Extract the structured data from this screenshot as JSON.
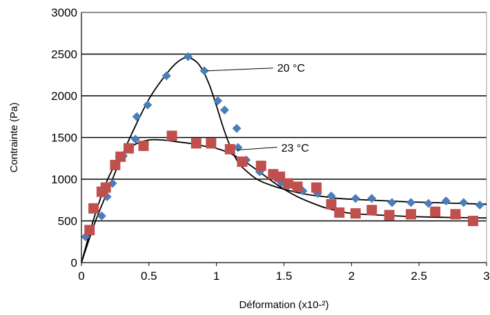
{
  "chart_data": {
    "type": "scatter",
    "xlabel": "Déformation (x10-²)",
    "ylabel": "Contrainte (Pa)",
    "xlim": [
      0,
      3
    ],
    "ylim": [
      0,
      3000
    ],
    "x_ticks": [
      "0",
      "0.5",
      "1",
      "1.5",
      "2",
      "2.5",
      "3"
    ],
    "y_ticks": [
      "0",
      "500",
      "1000",
      "1500",
      "2000",
      "2500",
      "3000"
    ],
    "grid": "horizontal",
    "annotations": [
      {
        "text": "20 °C",
        "x": 1.45,
        "y": 2340,
        "line_to": [
          0.93,
          2300
        ]
      },
      {
        "text": "23 °C",
        "x": 1.48,
        "y": 1380,
        "line_to": [
          1.15,
          1350
        ]
      }
    ],
    "series": [
      {
        "marker": "diamond",
        "color": "#4a7ebb",
        "x": [
          0.03,
          0.15,
          0.19,
          0.23,
          0.28,
          0.31,
          0.4,
          0.41,
          0.49,
          0.63,
          0.79,
          0.91,
          1.01,
          1.06,
          1.15,
          1.16,
          1.22,
          1.32,
          1.43,
          1.48,
          1.53,
          1.58,
          1.64,
          1.75,
          1.85,
          2.03,
          2.15,
          2.3,
          2.44,
          2.57,
          2.7,
          2.83,
          2.95
        ],
        "y": [
          310,
          560,
          790,
          950,
          1270,
          1280,
          1480,
          1750,
          1890,
          2240,
          2470,
          2300,
          1940,
          1830,
          1610,
          1380,
          1230,
          1090,
          1030,
          960,
          920,
          910,
          860,
          830,
          800,
          770,
          770,
          720,
          720,
          710,
          740,
          720,
          690
        ]
      },
      {
        "marker": "square",
        "color": "#c0504d",
        "x": [
          0.06,
          0.09,
          0.15,
          0.18,
          0.25,
          0.29,
          0.35,
          0.46,
          0.67,
          0.85,
          0.96,
          1.1,
          1.19,
          1.33,
          1.42,
          1.47,
          1.53,
          1.6,
          1.74,
          1.85,
          1.91,
          2.03,
          2.15,
          2.28,
          2.44,
          2.62,
          2.77,
          2.9
        ],
        "y": [
          390,
          650,
          850,
          900,
          1170,
          1270,
          1370,
          1400,
          1520,
          1430,
          1430,
          1360,
          1210,
          1160,
          1060,
          1030,
          950,
          910,
          900,
          700,
          600,
          590,
          630,
          570,
          580,
          610,
          580,
          500
        ]
      }
    ],
    "fit_curves": [
      {
        "color": "#000000",
        "x": [
          0.0,
          0.1,
          0.2,
          0.3,
          0.4,
          0.5,
          0.6,
          0.7,
          0.78,
          0.85,
          0.9,
          0.95,
          1.0,
          1.05,
          1.1,
          1.15,
          1.2,
          1.3,
          1.4,
          1.5,
          1.6,
          1.7,
          1.8,
          1.9,
          2.0,
          2.2,
          2.4,
          2.6,
          2.8,
          3.0
        ],
        "y": [
          0,
          480,
          880,
          1280,
          1640,
          1960,
          2200,
          2390,
          2460,
          2410,
          2300,
          2120,
          1880,
          1620,
          1400,
          1230,
          1130,
          1000,
          930,
          880,
          840,
          810,
          790,
          770,
          760,
          745,
          730,
          720,
          710,
          700
        ]
      },
      {
        "color": "#000000",
        "x": [
          0.0,
          0.1,
          0.2,
          0.3,
          0.4,
          0.5,
          0.6,
          0.7,
          0.8,
          0.9,
          1.0,
          1.1,
          1.2,
          1.3,
          1.4,
          1.5,
          1.6,
          1.7,
          1.8,
          1.9,
          2.0,
          2.2,
          2.4,
          2.6,
          2.8,
          3.0
        ],
        "y": [
          0,
          570,
          1020,
          1290,
          1420,
          1470,
          1470,
          1450,
          1430,
          1400,
          1370,
          1310,
          1220,
          1110,
          990,
          880,
          790,
          720,
          660,
          620,
          590,
          570,
          555,
          545,
          540,
          535
        ]
      }
    ]
  }
}
